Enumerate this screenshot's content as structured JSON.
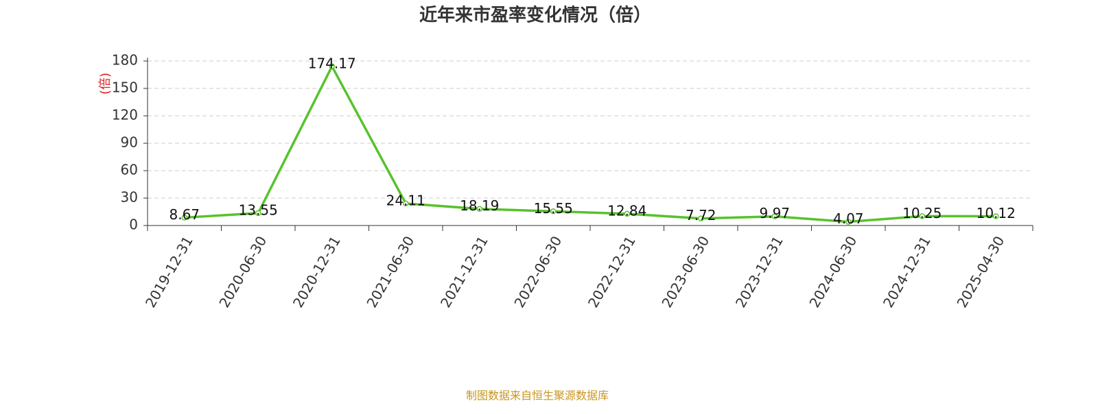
{
  "chart_data": {
    "type": "line",
    "title": "近年来市盈率变化情况（倍）",
    "y_label": "(倍)",
    "source": "制图数据来自恒生聚源数据库",
    "categories": [
      "2019-12-31",
      "2020-06-30",
      "2020-12-31",
      "2021-06-30",
      "2021-12-31",
      "2022-06-30",
      "2022-12-31",
      "2023-06-30",
      "2023-12-31",
      "2024-06-30",
      "2024-12-31",
      "2025-04-30"
    ],
    "values": [
      8.67,
      13.55,
      174.17,
      24.11,
      18.19,
      15.55,
      12.84,
      7.72,
      9.97,
      4.07,
      10.25,
      10.12
    ],
    "color": "#58c22c",
    "ylim": [
      0,
      180
    ],
    "yticks": [
      0,
      30,
      60,
      90,
      120,
      150,
      180
    ],
    "grid": true
  }
}
